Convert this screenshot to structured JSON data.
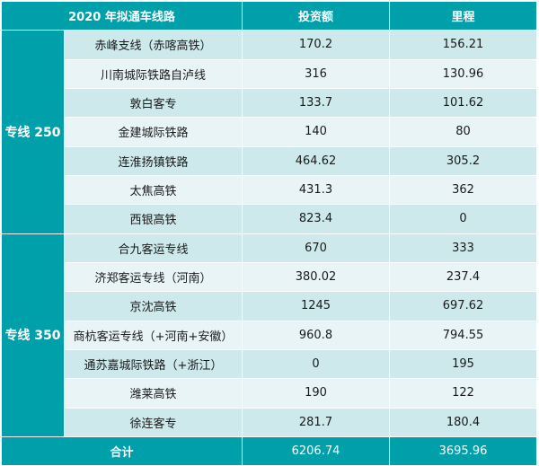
{
  "header": {
    "col_route": "2020 年拟通车线路",
    "col_investment": "投资额",
    "col_mileage": "里程"
  },
  "groups": [
    {
      "label": "专线 250",
      "rows": [
        {
          "name": "赤峰支线（赤喀高铁）",
          "investment": "170.2",
          "mileage": "156.21"
        },
        {
          "name": "川南城际铁路自泸线",
          "investment": "316",
          "mileage": "130.96"
        },
        {
          "name": "敦白客专",
          "investment": "133.7",
          "mileage": "101.62"
        },
        {
          "name": "金建城际铁路",
          "investment": "140",
          "mileage": "80"
        },
        {
          "name": "连淮扬镇铁路",
          "investment": "464.62",
          "mileage": "305.2"
        },
        {
          "name": "太焦高铁",
          "investment": "431.3",
          "mileage": "362"
        },
        {
          "name": "西银高铁",
          "investment": "823.4",
          "mileage": "0"
        }
      ]
    },
    {
      "label": "专线 350",
      "rows": [
        {
          "name": "合九客运专线",
          "investment": "670",
          "mileage": "333"
        },
        {
          "name": "济郑客运专线（河南）",
          "investment": "380.02",
          "mileage": "237.4"
        },
        {
          "name": "京沈高铁",
          "investment": "1245",
          "mileage": "697.62"
        },
        {
          "name": "商杭客运专线（+河南+安徽）",
          "investment": "960.8",
          "mileage": "794.55"
        },
        {
          "name": "通苏嘉城际铁路（+浙江）",
          "investment": "0",
          "mileage": "195"
        },
        {
          "name": "潍莱高铁",
          "investment": "190",
          "mileage": "122"
        },
        {
          "name": "徐连客专",
          "investment": "281.7",
          "mileage": "180.4"
        }
      ]
    }
  ],
  "footer": {
    "label": "合计",
    "investment": "6206.74",
    "mileage": "3695.96"
  },
  "colors": {
    "header": "#00a0ab",
    "row_dark": "#cde9ec",
    "row_light": "#e8f4f6"
  }
}
